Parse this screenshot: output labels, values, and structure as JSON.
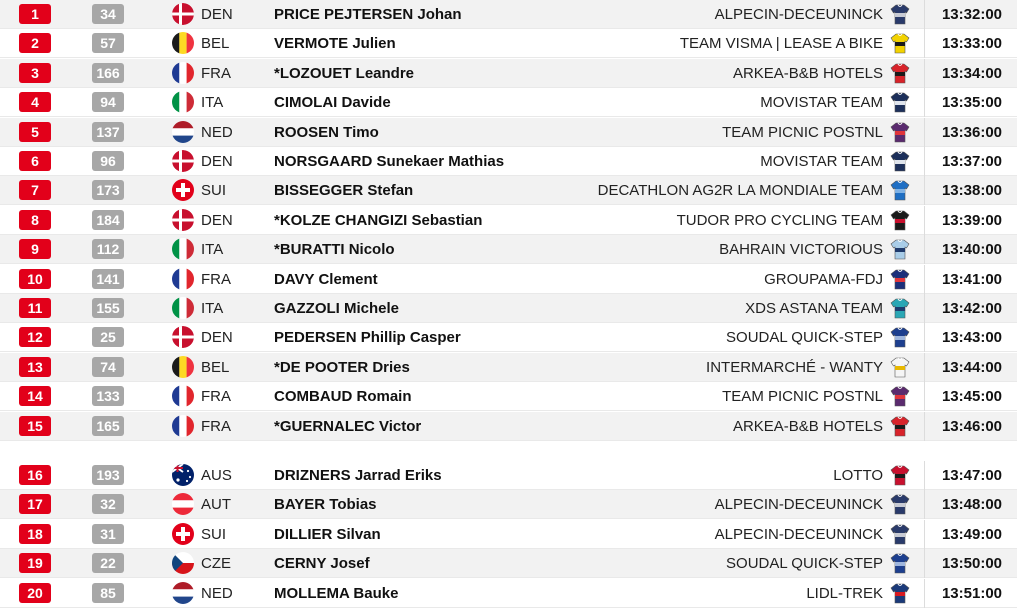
{
  "results": {
    "rows": [
      {
        "rank": "1",
        "bib": "34",
        "flag": "den",
        "nat": "DEN",
        "rider": "PRICE PEJTERSEN Johan",
        "team": "ALPECIN-DECEUNINCK",
        "jersey": "alpecin-jersey-icon",
        "jc": [
          "#2a3b6b",
          "#c8cbd4"
        ],
        "time": "13:32:00"
      },
      {
        "rank": "2",
        "bib": "57",
        "flag": "bel",
        "nat": "BEL",
        "rider": "VERMOTE Julien",
        "team": "TEAM VISMA | LEASE A BIKE",
        "jersey": "visma-jersey-icon",
        "jc": [
          "#f2d200",
          "#1a1a1a"
        ],
        "time": "13:33:00"
      },
      {
        "rank": "3",
        "bib": "166",
        "flag": "fra",
        "nat": "FRA",
        "rider": "*LOZOUET Leandre",
        "team": "ARKEA-B&B HOTELS",
        "jersey": "arkea-jersey-icon",
        "jc": [
          "#d8232a",
          "#1a1a1a"
        ],
        "time": "13:34:00"
      },
      {
        "rank": "4",
        "bib": "94",
        "flag": "ita",
        "nat": "ITA",
        "rider": "CIMOLAI Davide",
        "team": "MOVISTAR TEAM",
        "jersey": "movistar-jersey-icon",
        "jc": [
          "#1c2f5a",
          "#dfe4ec"
        ],
        "time": "13:35:00"
      },
      {
        "rank": "5",
        "bib": "137",
        "flag": "ned",
        "nat": "NED",
        "rider": "ROOSEN Timo",
        "team": "TEAM PICNIC POSTNL",
        "jersey": "picnic-jersey-icon",
        "jc": [
          "#5a2a6e",
          "#e0353b"
        ],
        "time": "13:36:00"
      },
      {
        "rank": "6",
        "bib": "96",
        "flag": "den",
        "nat": "DEN",
        "rider": "NORSGAARD Sunekaer Mathias",
        "team": "MOVISTAR TEAM",
        "jersey": "movistar-jersey-icon",
        "jc": [
          "#1c2f5a",
          "#dfe4ec"
        ],
        "time": "13:37:00"
      },
      {
        "rank": "7",
        "bib": "173",
        "flag": "sui",
        "nat": "SUI",
        "rider": "BISSEGGER Stefan",
        "team": "DECATHLON AG2R LA MONDIALE TEAM",
        "jersey": "decathlon-jersey-icon",
        "jc": [
          "#1f6fc4",
          "#7fb2e5"
        ],
        "time": "13:38:00"
      },
      {
        "rank": "8",
        "bib": "184",
        "flag": "den",
        "nat": "DEN",
        "rider": "*KOLZE CHANGIZI Sebastian",
        "team": "TUDOR PRO CYCLING TEAM",
        "jersey": "tudor-jersey-icon",
        "jc": [
          "#1a1a1a",
          "#c8102e"
        ],
        "time": "13:39:00"
      },
      {
        "rank": "9",
        "bib": "112",
        "flag": "ita",
        "nat": "ITA",
        "rider": "*BURATTI Nicolo",
        "team": "BAHRAIN VICTORIOUS",
        "jersey": "bahrain-jersey-icon",
        "jc": [
          "#a9cde8",
          "#1f3a6b"
        ],
        "time": "13:40:00"
      },
      {
        "rank": "10",
        "bib": "141",
        "flag": "fra",
        "nat": "FRA",
        "rider": "DAVY Clement",
        "team": "GROUPAMA-FDJ",
        "jersey": "groupama-jersey-icon",
        "jc": [
          "#1c2f7a",
          "#e0353b"
        ],
        "time": "13:41:00"
      },
      {
        "rank": "11",
        "bib": "155",
        "flag": "ita",
        "nat": "ITA",
        "rider": "GAZZOLI Michele",
        "team": "XDS ASTANA TEAM",
        "jersey": "astana-jersey-icon",
        "jc": [
          "#2aa7b5",
          "#1e3c6e"
        ],
        "time": "13:42:00"
      },
      {
        "rank": "12",
        "bib": "25",
        "flag": "den",
        "nat": "DEN",
        "rider": "PEDERSEN Phillip Casper",
        "team": "SOUDAL QUICK-STEP",
        "jersey": "soudal-jersey-icon",
        "jc": [
          "#1d3f8f",
          "#9fb6dd"
        ],
        "time": "13:43:00"
      },
      {
        "rank": "13",
        "bib": "74",
        "flag": "bel",
        "nat": "BEL",
        "rider": "*DE POOTER Dries",
        "team": "INTERMARCHÉ - WANTY",
        "jersey": "intermarche-jersey-icon",
        "jc": [
          "#f5f5f5",
          "#e8b800"
        ],
        "time": "13:44:00"
      },
      {
        "rank": "14",
        "bib": "133",
        "flag": "fra",
        "nat": "FRA",
        "rider": "COMBAUD Romain",
        "team": "TEAM PICNIC POSTNL",
        "jersey": "picnic-jersey-icon",
        "jc": [
          "#5a2a6e",
          "#e0353b"
        ],
        "time": "13:45:00"
      },
      {
        "rank": "15",
        "bib": "165",
        "flag": "fra",
        "nat": "FRA",
        "rider": "*GUERNALEC Victor",
        "team": "ARKEA-B&B HOTELS",
        "jersey": "arkea-jersey-icon",
        "jc": [
          "#d8232a",
          "#1a1a1a"
        ],
        "time": "13:46:00"
      },
      {
        "rank": "16",
        "bib": "193",
        "flag": "aus",
        "nat": "AUS",
        "rider": "DRIZNERS Jarrad Eriks",
        "team": "LOTTO",
        "jersey": "lotto-jersey-icon",
        "jc": [
          "#c8102e",
          "#1a1a1a"
        ],
        "time": "13:47:00"
      },
      {
        "rank": "17",
        "bib": "32",
        "flag": "aut",
        "nat": "AUT",
        "rider": "BAYER Tobias",
        "team": "ALPECIN-DECEUNINCK",
        "jersey": "alpecin-jersey-icon",
        "jc": [
          "#2a3b6b",
          "#c8cbd4"
        ],
        "time": "13:48:00"
      },
      {
        "rank": "18",
        "bib": "31",
        "flag": "sui",
        "nat": "SUI",
        "rider": "DILLIER Silvan",
        "team": "ALPECIN-DECEUNINCK",
        "jersey": "alpecin-jersey-icon",
        "jc": [
          "#2a3b6b",
          "#c8cbd4"
        ],
        "time": "13:49:00"
      },
      {
        "rank": "19",
        "bib": "22",
        "flag": "cze",
        "nat": "CZE",
        "rider": "CERNY Josef",
        "team": "SOUDAL QUICK-STEP",
        "jersey": "soudal-jersey-icon",
        "jc": [
          "#1d3f8f",
          "#9fb6dd"
        ],
        "time": "13:50:00"
      },
      {
        "rank": "20",
        "bib": "85",
        "flag": "ned",
        "nat": "NED",
        "rider": "MOLLEMA Bauke",
        "team": "LIDL-TREK",
        "jersey": "lidltrek-jersey-icon",
        "jc": [
          "#1a3a7a",
          "#d71a21"
        ],
        "time": "13:51:00"
      }
    ]
  },
  "colors": {
    "rank_badge": "#e2001a",
    "bib_badge": "#a7a7a7",
    "row_alt": "#f2f2f2"
  }
}
